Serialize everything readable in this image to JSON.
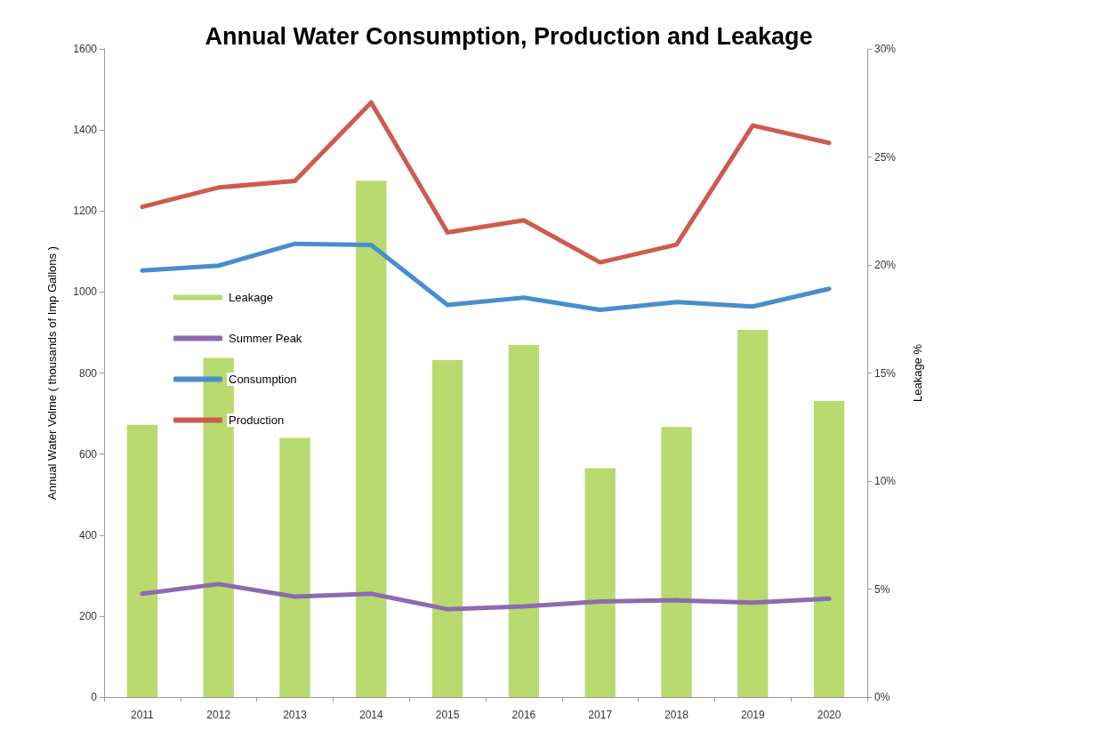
{
  "chart_data": {
    "type": "line",
    "title": "Annual Water Consumption, Production and Leakage",
    "ylabel": "Annual Water Volme ( thousands of Imp Gallons )",
    "y2label": "Leakage %",
    "categories": [
      "2011",
      "2012",
      "2013",
      "2014",
      "2015",
      "2016",
      "2017",
      "2018",
      "2019",
      "2020"
    ],
    "series": [
      {
        "name": "Leakage",
        "type": "bar",
        "axis": "y2",
        "color": "#b9da6e",
        "values": [
          12.6,
          15.7,
          12.0,
          23.9,
          15.6,
          16.3,
          10.6,
          12.5,
          17.0,
          13.7
        ]
      },
      {
        "name": "Summer Peak",
        "color": "#8c6bb1",
        "values": [
          255,
          279,
          248,
          255,
          217,
          224,
          236,
          239,
          233,
          243
        ]
      },
      {
        "name": "Consumption",
        "color": "#4a8dcc",
        "values": [
          1053,
          1065,
          1119,
          1116,
          968,
          986,
          956,
          975,
          964,
          1008
        ]
      },
      {
        "name": "Production",
        "color": "#cf5a4f",
        "values": [
          1210,
          1258,
          1274,
          1468,
          1147,
          1177,
          1073,
          1117,
          1411,
          1368
        ]
      }
    ],
    "ylim": [
      0,
      1600
    ],
    "yticks": [
      0,
      200,
      400,
      600,
      800,
      1000,
      1200,
      1400,
      1600
    ],
    "y2lim": [
      0,
      30
    ],
    "y2ticks": [
      {
        "value": 0,
        "label": "0%"
      },
      {
        "value": 5,
        "label": "5%"
      },
      {
        "value": 10,
        "label": "10%"
      },
      {
        "value": 15,
        "label": "15%"
      },
      {
        "value": 20,
        "label": "20%"
      },
      {
        "value": 25,
        "label": "25%"
      },
      {
        "value": 30,
        "label": "30%"
      }
    ],
    "grid": false,
    "legend": "left",
    "marker": "none",
    "line_style": "solid"
  }
}
